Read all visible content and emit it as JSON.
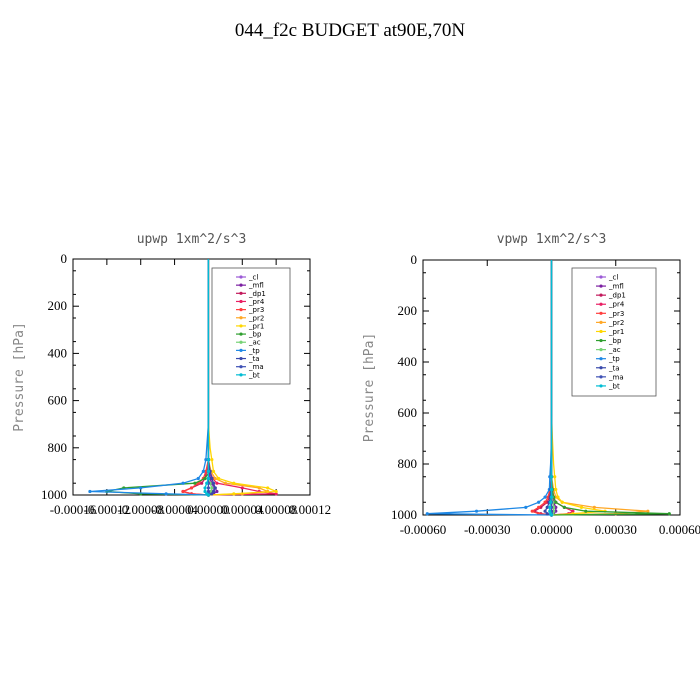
{
  "title": "044_f2c  BUDGET at90E,70N",
  "chart_data": [
    {
      "type": "line",
      "title": "upwp   1xm^2/s^3",
      "ylabel": "Pressure [hPa]",
      "xlabel": "",
      "xlim": [
        -0.00016,
        0.00012
      ],
      "ylim": [
        1000,
        0
      ],
      "xticks": [
        "-0.00016",
        "-0.00012",
        "-0.00008",
        "-0.00004",
        "0.00000",
        "0.00004",
        "0.00008",
        "0.00012"
      ],
      "yticks": [
        "0",
        "200",
        "400",
        "600",
        "800",
        "1000"
      ],
      "legend_position": "top-right",
      "y": [
        0,
        100,
        200,
        300,
        400,
        500,
        600,
        700,
        800,
        850,
        900,
        930,
        950,
        970,
        985,
        995,
        1000
      ],
      "series": [
        {
          "name": "_cl",
          "color": "#9b59d6",
          "values": [
            0,
            0,
            0,
            0,
            0,
            0,
            0,
            0,
            0,
            0,
            0,
            2e-06,
            4e-06,
            6e-06,
            6e-06,
            4e-06,
            0
          ]
        },
        {
          "name": "_mfl",
          "color": "#7b1fa2",
          "values": [
            0,
            0,
            0,
            0,
            0,
            0,
            0,
            0,
            0,
            0,
            1e-06,
            2e-06,
            4e-06,
            8e-06,
            1e-05,
            6e-06,
            0
          ]
        },
        {
          "name": "_dp1",
          "color": "#c2185b",
          "values": [
            0,
            0,
            0,
            0,
            0,
            0,
            0,
            0,
            0,
            0,
            -2e-06,
            -4e-06,
            -8e-06,
            -2e-05,
            -3e-05,
            -2e-05,
            0
          ]
        },
        {
          "name": "_pr4",
          "color": "#e91e63",
          "values": [
            0,
            0,
            0,
            0,
            0,
            0,
            0,
            0,
            0,
            0,
            2e-06,
            5e-06,
            1e-05,
            4e-05,
            6e-05,
            8e-05,
            0
          ]
        },
        {
          "name": "_pr3",
          "color": "#ff3d3d",
          "values": [
            0,
            0,
            0,
            0,
            0,
            0,
            0,
            0,
            0,
            0,
            -3e-06,
            -6e-06,
            -1.2e-05,
            -2e-05,
            -3e-05,
            -2e-05,
            0
          ]
        },
        {
          "name": "_pr2",
          "color": "#ffa726",
          "values": [
            0,
            0,
            0,
            0,
            0,
            0,
            0,
            0,
            0,
            0,
            3e-06,
            8e-06,
            2e-05,
            6e-05,
            7e-05,
            4e-05,
            0
          ]
        },
        {
          "name": "_pr1",
          "color": "#ffd600",
          "values": [
            0,
            0,
            0,
            0,
            0,
            0,
            0,
            0,
            2e-06,
            4e-06,
            6e-06,
            1.2e-05,
            3e-05,
            7e-05,
            8e-05,
            3e-05,
            0
          ]
        },
        {
          "name": "_bp",
          "color": "#2e9e2e",
          "values": [
            0,
            0,
            0,
            0,
            0,
            0,
            0,
            0,
            0,
            0,
            1e-06,
            -4e-06,
            -1.6e-05,
            -0.0001,
            -0.00012,
            -8e-05,
            0
          ]
        },
        {
          "name": "_ac",
          "color": "#76d275",
          "values": [
            0,
            0,
            0,
            0,
            0,
            0,
            0,
            0,
            0,
            0,
            0,
            0,
            2e-06,
            4e-06,
            3e-06,
            2e-06,
            0
          ]
        },
        {
          "name": "_tp",
          "color": "#1e88e5",
          "values": [
            0,
            0,
            0,
            0,
            0,
            0,
            0,
            0,
            -2e-06,
            -3e-06,
            -6e-06,
            -1.2e-05,
            -3e-05,
            -8e-05,
            -0.00014,
            -5e-05,
            0
          ]
        },
        {
          "name": "_ta",
          "color": "#3949ab",
          "values": [
            0,
            0,
            0,
            0,
            0,
            0,
            0,
            0,
            0,
            0,
            2e-06,
            4e-06,
            6e-06,
            8e-06,
            6e-06,
            4e-06,
            0
          ]
        },
        {
          "name": "_ma",
          "color": "#3f51b5",
          "values": [
            0,
            0,
            0,
            0,
            0,
            0,
            0,
            0,
            0,
            0,
            0,
            0,
            0,
            0,
            0,
            0,
            0
          ]
        },
        {
          "name": "_bt",
          "color": "#00bcd4",
          "values": [
            0,
            0,
            0,
            0,
            0,
            0,
            0,
            0,
            0,
            0,
            0,
            0,
            -2e-06,
            -4e-06,
            -4e-06,
            -2e-06,
            0
          ]
        }
      ]
    },
    {
      "type": "line",
      "title": "vpwp   1xm^2/s^3",
      "ylabel": "Pressure [hPa]",
      "xlabel": "",
      "xlim": [
        -0.0006,
        0.0006
      ],
      "ylim": [
        1000,
        0
      ],
      "xticks": [
        "-0.00060",
        "-0.00030",
        "0.00000",
        "0.00030",
        "0.00060"
      ],
      "yticks": [
        "0",
        "200",
        "400",
        "600",
        "800",
        "1000"
      ],
      "legend_position": "top-right",
      "y": [
        0,
        100,
        200,
        300,
        400,
        500,
        600,
        700,
        800,
        850,
        900,
        930,
        950,
        970,
        985,
        995,
        1000
      ],
      "series": [
        {
          "name": "_cl",
          "color": "#9b59d6",
          "values": [
            0,
            0,
            0,
            0,
            0,
            0,
            0,
            0,
            0,
            0,
            0,
            4e-06,
            8e-06,
            1e-05,
            1e-05,
            6e-06,
            0
          ]
        },
        {
          "name": "_mfl",
          "color": "#7b1fa2",
          "values": [
            0,
            0,
            0,
            0,
            0,
            0,
            0,
            0,
            0,
            0,
            2e-06,
            6e-06,
            1e-05,
            2e-05,
            2e-05,
            1e-05,
            0
          ]
        },
        {
          "name": "_dp1",
          "color": "#c2185b",
          "values": [
            0,
            0,
            0,
            0,
            0,
            0,
            0,
            0,
            0,
            0,
            -5e-06,
            -1e-05,
            -2e-05,
            -5e-05,
            -8e-05,
            -5e-05,
            0
          ]
        },
        {
          "name": "_pr4",
          "color": "#e91e63",
          "values": [
            0,
            0,
            0,
            0,
            0,
            0,
            0,
            0,
            0,
            0,
            5e-06,
            1e-05,
            2e-05,
            6e-05,
            0.0001,
            8e-05,
            0
          ]
        },
        {
          "name": "_pr3",
          "color": "#ff3d3d",
          "values": [
            0,
            0,
            0,
            0,
            0,
            0,
            0,
            0,
            0,
            0,
            -8e-06,
            -1.6e-05,
            -3e-05,
            -6e-05,
            -9e-05,
            -6e-05,
            0
          ]
        },
        {
          "name": "_pr2",
          "color": "#ffa726",
          "values": [
            0,
            0,
            0,
            0,
            0,
            0,
            0,
            0,
            0,
            0,
            1e-05,
            2e-05,
            5e-05,
            0.0002,
            0.00045,
            0.0003,
            0
          ]
        },
        {
          "name": "_pr1",
          "color": "#ffd600",
          "values": [
            0,
            0,
            0,
            0,
            0,
            0,
            0,
            4e-06,
            1e-05,
            1.5e-05,
            2e-05,
            3e-05,
            5e-05,
            0.00014,
            0.00025,
            0.0001,
            0
          ]
        },
        {
          "name": "_bp",
          "color": "#2e9e2e",
          "values": [
            0,
            0,
            0,
            0,
            0,
            0,
            0,
            0,
            0,
            0,
            4e-06,
            1e-05,
            2e-05,
            6e-05,
            0.00016,
            0.00055,
            0
          ]
        },
        {
          "name": "_ac",
          "color": "#76d275",
          "values": [
            0,
            0,
            0,
            0,
            0,
            0,
            0,
            0,
            0,
            0,
            0,
            2e-06,
            6e-06,
            1e-05,
            1e-05,
            6e-06,
            0
          ]
        },
        {
          "name": "_tp",
          "color": "#1e88e5",
          "values": [
            0,
            0,
            0,
            0,
            0,
            0,
            0,
            0,
            -4e-06,
            -8e-06,
            -1e-05,
            -3e-05,
            -6e-05,
            -0.00012,
            -0.00035,
            -0.00058,
            0
          ]
        },
        {
          "name": "_ta",
          "color": "#3949ab",
          "values": [
            0,
            0,
            0,
            0,
            0,
            0,
            0,
            0,
            0,
            0,
            -3e-06,
            -6e-06,
            -1e-05,
            -2e-05,
            -3e-05,
            -2e-05,
            0
          ]
        },
        {
          "name": "_ma",
          "color": "#3f51b5",
          "values": [
            0,
            0,
            0,
            0,
            0,
            0,
            0,
            0,
            0,
            0,
            0,
            0,
            0,
            0,
            0,
            0,
            0
          ]
        },
        {
          "name": "_bt",
          "color": "#00bcd4",
          "values": [
            0,
            0,
            0,
            0,
            0,
            0,
            0,
            0,
            0,
            0,
            0,
            0,
            -4e-06,
            -8e-06,
            -8e-06,
            -4e-06,
            0
          ]
        }
      ]
    }
  ]
}
